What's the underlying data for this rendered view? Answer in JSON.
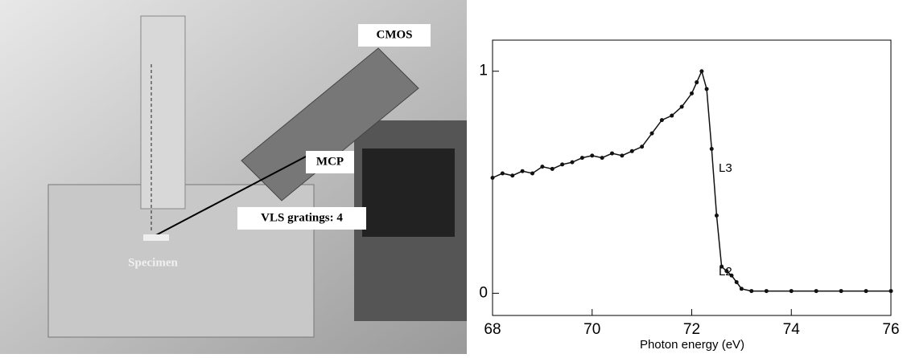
{
  "photo": {
    "labels": [
      "CMOS",
      "MCP",
      "VLS gratings: 4",
      "Specimen"
    ]
  },
  "chart_data": {
    "type": "line",
    "xlabel": "Photon energy (eV)",
    "x": [
      68.0,
      68.2,
      68.4,
      68.6,
      68.8,
      69.0,
      69.2,
      69.4,
      69.6,
      69.8,
      70.0,
      70.2,
      70.4,
      70.6,
      70.8,
      71.0,
      71.2,
      71.4,
      71.6,
      71.8,
      72.0,
      72.1,
      72.2,
      72.3,
      72.4,
      72.5,
      72.6,
      72.7,
      72.8,
      72.9,
      73.0,
      73.2,
      73.5,
      74.0,
      74.5,
      75.0,
      75.5,
      76.0
    ],
    "series": [
      {
        "color": "#111111",
        "values": [
          0.52,
          0.54,
          0.53,
          0.55,
          0.54,
          0.57,
          0.56,
          0.58,
          0.59,
          0.61,
          0.62,
          0.61,
          0.63,
          0.62,
          0.64,
          0.66,
          0.72,
          0.78,
          0.8,
          0.84,
          0.9,
          0.95,
          1.0,
          0.92,
          0.65,
          0.35,
          0.12,
          0.1,
          0.08,
          0.05,
          0.02,
          0.01,
          0.01,
          0.01,
          0.01,
          0.01,
          0.01,
          0.01
        ]
      }
    ],
    "annotations": [
      "L3",
      "L2"
    ],
    "xlim": [
      68,
      76
    ],
    "xticks": [
      68,
      70,
      72,
      74,
      76
    ],
    "ylim": [
      -0.1,
      1.14
    ],
    "yticks": [
      0,
      1
    ]
  }
}
